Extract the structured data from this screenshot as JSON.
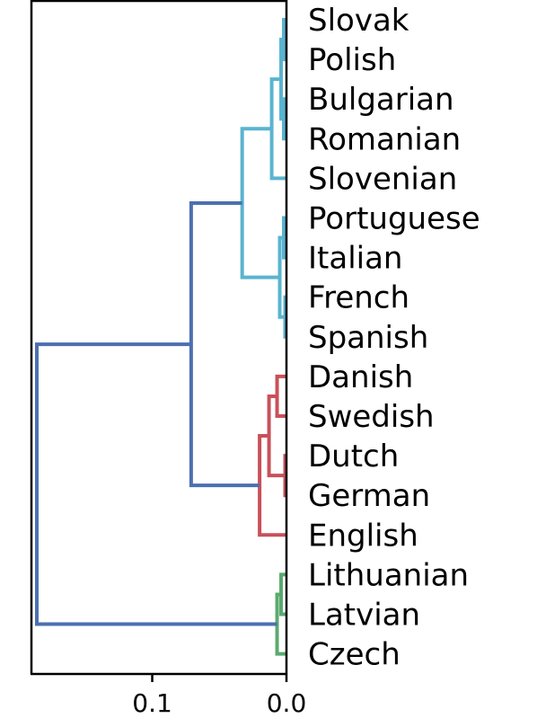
{
  "chart_data": {
    "type": "dendrogram",
    "orientation": "left",
    "xlim": [
      0.19,
      0.0
    ],
    "x_ticks": [
      {
        "value": 0.1,
        "label": "0.1"
      },
      {
        "value": 0.0,
        "label": "0.0"
      }
    ],
    "leaves": [
      "Slovak",
      "Polish",
      "Bulgarian",
      "Romanian",
      "Slovenian",
      "Portuguese",
      "Italian",
      "French",
      "Spanish",
      "Danish",
      "Swedish",
      "Dutch",
      "German",
      "English",
      "Lithuanian",
      "Latvian",
      "Czech"
    ],
    "colors": {
      "cyan": "#5ab4cf",
      "red": "#c9505a",
      "green": "#5aaa6e",
      "blue": "#4c6fb0",
      "axis": "#000000"
    },
    "merges": [
      {
        "id": "n1",
        "children": [
          "Slovak",
          "Polish"
        ],
        "height": 0.002,
        "color": "cyan"
      },
      {
        "id": "n2",
        "children": [
          "Bulgarian",
          "Romanian"
        ],
        "height": 0.002,
        "color": "cyan"
      },
      {
        "id": "n3",
        "children": [
          "n1",
          "n2"
        ],
        "height": 0.004,
        "color": "cyan"
      },
      {
        "id": "n4",
        "children": [
          "n3",
          "Slovenian"
        ],
        "height": 0.011,
        "color": "cyan"
      },
      {
        "id": "n5",
        "children": [
          "Portuguese",
          "Italian"
        ],
        "height": 0.002,
        "color": "cyan"
      },
      {
        "id": "n6",
        "children": [
          "French",
          "Spanish"
        ],
        "height": 0.001,
        "color": "cyan"
      },
      {
        "id": "n7",
        "children": [
          "n5",
          "n6"
        ],
        "height": 0.005,
        "color": "cyan"
      },
      {
        "id": "n8",
        "children": [
          "n4",
          "n7"
        ],
        "height": 0.033,
        "color": "cyan"
      },
      {
        "id": "n9",
        "children": [
          "Danish",
          "Swedish"
        ],
        "height": 0.007,
        "color": "red"
      },
      {
        "id": "n10",
        "children": [
          "Dutch",
          "German"
        ],
        "height": 0.001,
        "color": "red"
      },
      {
        "id": "n11",
        "children": [
          "n9",
          "n10"
        ],
        "height": 0.013,
        "color": "red"
      },
      {
        "id": "n12",
        "children": [
          "n11",
          "English"
        ],
        "height": 0.02,
        "color": "red"
      },
      {
        "id": "n13",
        "children": [
          "Lithuanian",
          "Latvian"
        ],
        "height": 0.004,
        "color": "green"
      },
      {
        "id": "n14",
        "children": [
          "n13",
          "Czech"
        ],
        "height": 0.007,
        "color": "green"
      },
      {
        "id": "n15",
        "children": [
          "n8",
          "n12"
        ],
        "height": 0.071,
        "color": "blue"
      },
      {
        "id": "n16",
        "children": [
          "n15",
          "n14"
        ],
        "height": 0.186,
        "color": "blue"
      }
    ]
  }
}
